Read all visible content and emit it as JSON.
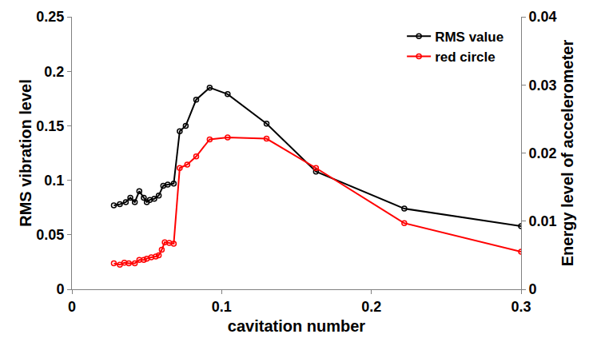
{
  "chart_data": {
    "type": "line",
    "x_label": "cavitation number",
    "y_label": "RMS vibration level",
    "y2_label": "Energy level of accelerometer",
    "xlim": [
      0,
      0.3
    ],
    "xticks": [
      0,
      0.1,
      0.2,
      0.3
    ],
    "ylim": [
      0,
      0.25
    ],
    "yticks": [
      0,
      0.05,
      0.1,
      0.15,
      0.2,
      0.25
    ],
    "y2lim": [
      0,
      0.04
    ],
    "y2ticks": [
      0,
      0.01,
      0.02,
      0.03,
      0.04
    ],
    "grid": false,
    "legend": "top right",
    "series": [
      {
        "name": "RMS value",
        "color": "#000000",
        "marker": "open circle",
        "line_style": "solid",
        "axis": "y",
        "x": [
          0.028,
          0.032,
          0.036,
          0.039,
          0.042,
          0.045,
          0.048,
          0.05,
          0.052,
          0.055,
          0.058,
          0.061,
          0.064,
          0.068,
          0.072,
          0.076,
          0.083,
          0.092,
          0.104,
          0.13,
          0.163,
          0.222,
          0.3
        ],
        "values": [
          0.077,
          0.078,
          0.08,
          0.084,
          0.08,
          0.09,
          0.084,
          0.08,
          0.082,
          0.083,
          0.086,
          0.095,
          0.096,
          0.097,
          0.145,
          0.15,
          0.174,
          0.185,
          0.179,
          0.152,
          0.108,
          0.074,
          0.058
        ]
      },
      {
        "name": "red circle",
        "color": "#ff0000",
        "marker": "open circle",
        "line_style": "solid",
        "axis": "y2",
        "x": [
          0.028,
          0.032,
          0.035,
          0.038,
          0.042,
          0.045,
          0.048,
          0.05,
          0.053,
          0.056,
          0.058,
          0.06,
          0.062,
          0.065,
          0.068,
          0.072,
          0.077,
          0.083,
          0.092,
          0.104,
          0.13,
          0.163,
          0.222,
          0.3
        ],
        "values": [
          0.0038,
          0.0036,
          0.0039,
          0.0038,
          0.0038,
          0.0043,
          0.0043,
          0.0045,
          0.0047,
          0.0048,
          0.005,
          0.0058,
          0.0069,
          0.0068,
          0.0067,
          0.0178,
          0.0183,
          0.0195,
          0.022,
          0.0223,
          0.0221,
          0.0178,
          0.0097,
          0.0055
        ]
      }
    ]
  }
}
